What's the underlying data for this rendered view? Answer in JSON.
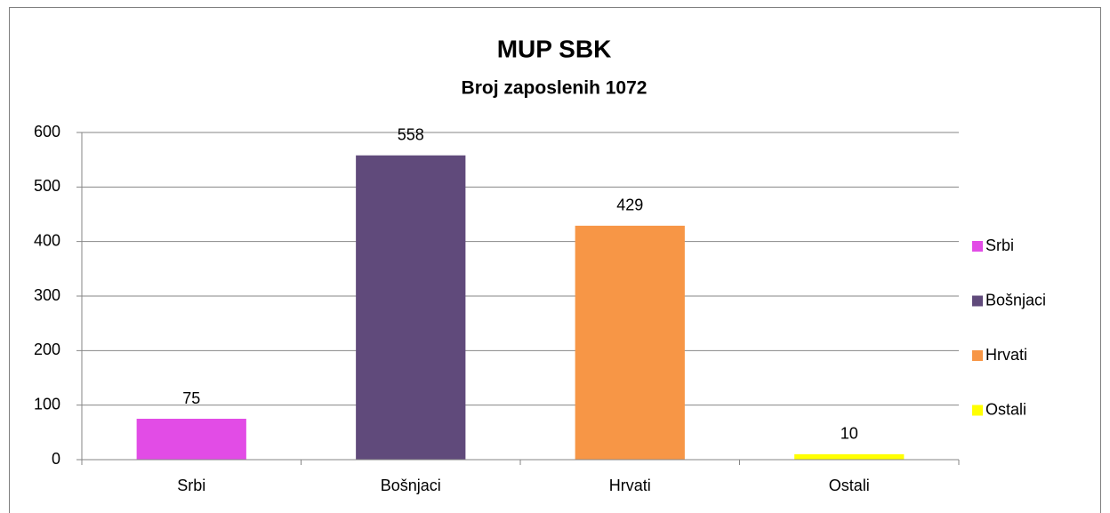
{
  "chart_data": {
    "type": "bar",
    "title": "MUP SBK",
    "subtitle": "Broj zaposlenih 1072",
    "categories": [
      "Srbi",
      "Bošnjaci",
      "Hrvati",
      "Ostali"
    ],
    "values": [
      75,
      558,
      429,
      10
    ],
    "colors": [
      "#e24ce6",
      "#604a7b",
      "#f79646",
      "#ffff00"
    ],
    "ylim": [
      0,
      600
    ],
    "yticks": [
      0,
      100,
      200,
      300,
      400,
      500,
      600
    ],
    "grid": true,
    "legend": "right"
  }
}
